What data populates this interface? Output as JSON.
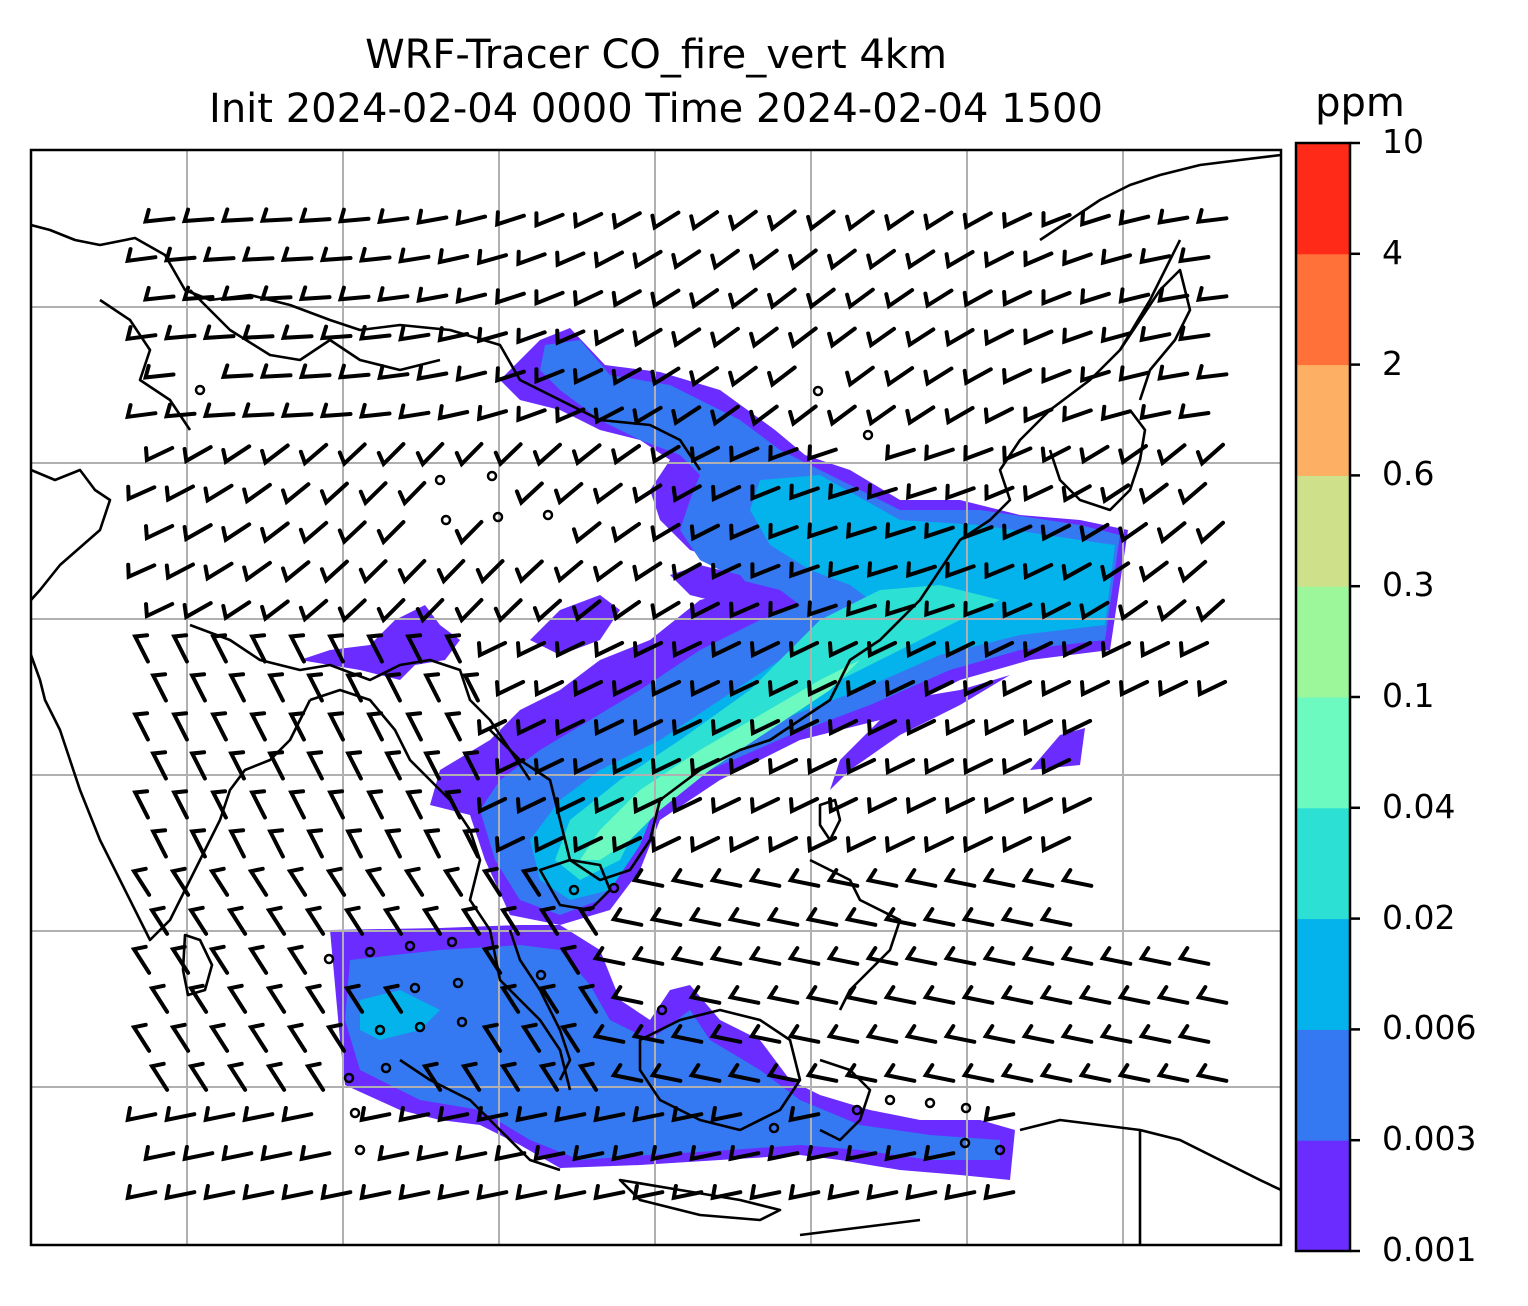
{
  "title": {
    "line1": "WRF-Tracer CO_fire_vert 4km",
    "line2": "Init 2024-02-04 0000 Time 2024-02-04 1500"
  },
  "colorbar": {
    "unit": "ppm",
    "levels": [
      "0.001",
      "0.003",
      "0.006",
      "0.02",
      "0.04",
      "0.1",
      "0.3",
      "0.6",
      "2",
      "4",
      "10"
    ],
    "colors": [
      "#6a2cff",
      "#3478f2",
      "#04b3eb",
      "#2ce0d4",
      "#6cfac0",
      "#9cf79a",
      "#cfe08a",
      "#fdaf63",
      "#ff7139",
      "#ff2a18"
    ]
  },
  "map": {
    "gridlines": "on",
    "wind_barbs": "on",
    "coastlines": "on",
    "country_borders": "on"
  }
}
